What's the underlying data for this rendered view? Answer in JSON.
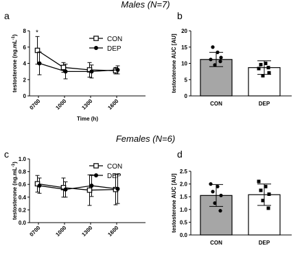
{
  "headings": {
    "males": "Males (N=7)",
    "females": "Females (N=6)"
  },
  "panel_letters": {
    "a": "a",
    "b": "b",
    "c": "c",
    "d": "d"
  },
  "chart_data": [
    {
      "id": "a",
      "type": "line",
      "x": [
        "0700",
        "1000",
        "1300",
        "1600"
      ],
      "xlabel": "Time (h)",
      "ylabel_main": "testosterone (ng.mL",
      "ylabel_sup": "-1",
      "ylabel_end": ")",
      "ylim": [
        0,
        8
      ],
      "yticks": [
        "0",
        "2",
        "4",
        "6",
        "8"
      ],
      "annotation": "*",
      "grid": false,
      "legend_position": "top-right",
      "series": [
        {
          "name": "CON",
          "marker": "open-square",
          "values": [
            5.6,
            3.5,
            3.2,
            3.1
          ],
          "errors": [
            1.7,
            0.6,
            0.9,
            0.4
          ]
        },
        {
          "name": "DEP",
          "marker": "filled-circle",
          "values": [
            4.0,
            3.0,
            3.0,
            3.2
          ],
          "errors": [
            1.4,
            0.9,
            0.8,
            0.5
          ]
        }
      ]
    },
    {
      "id": "b",
      "type": "bar",
      "categories": [
        "CON",
        "DEP"
      ],
      "values": [
        11.2,
        8.7
      ],
      "errors": [
        2.2,
        2.1
      ],
      "bar_fills": [
        "#a6a6a6",
        "#ffffff"
      ],
      "points": [
        [
          11.2,
          13.4,
          15.0,
          11.8,
          9.5,
          10.6
        ],
        [
          8.4,
          10.0,
          9.6,
          7.1,
          6.2,
          8.7
        ]
      ],
      "ylabel": "testosterone AUC [AU]",
      "ylim": [
        0,
        20
      ],
      "yticks": [
        "0",
        "5",
        "10",
        "15",
        "20"
      ]
    },
    {
      "id": "c",
      "type": "line",
      "x": [
        "0700",
        "1000",
        "1300",
        "1600"
      ],
      "xlabel": "",
      "ylabel_main": "testosterone (ng.mL",
      "ylabel_sup": "-1",
      "ylabel_end": ")",
      "ylim": [
        0.0,
        1.0
      ],
      "yticks": [
        "0.0",
        "0.2",
        "0.4",
        "0.6",
        "0.8",
        "1.0"
      ],
      "grid": false,
      "legend_position": "top-right",
      "series": [
        {
          "name": "CON",
          "marker": "open-square",
          "values": [
            0.61,
            0.55,
            0.51,
            0.52
          ],
          "errors": [
            0.13,
            0.15,
            0.24,
            0.24
          ]
        },
        {
          "name": "DEP",
          "marker": "filled-circle",
          "values": [
            0.58,
            0.52,
            0.58,
            0.53
          ],
          "errors": [
            0.12,
            0.12,
            0.17,
            0.23
          ]
        }
      ]
    },
    {
      "id": "d",
      "type": "bar",
      "categories": [
        "CON",
        "DEP"
      ],
      "values": [
        1.55,
        1.58
      ],
      "errors": [
        0.43,
        0.42
      ],
      "bar_fills": [
        "#a6a6a6",
        "#ffffff"
      ],
      "points": [
        [
          2.0,
          1.9,
          1.7,
          1.55,
          1.25,
          0.95
        ],
        [
          2.1,
          1.9,
          1.75,
          1.6,
          1.35,
          1.05
        ]
      ],
      "ylabel": "testosterone AUC [AU]",
      "ylim": [
        0.0,
        2.5
      ],
      "yticks": [
        "0.0",
        "0.5",
        "1.0",
        "1.5",
        "2.0",
        "2.5"
      ]
    }
  ]
}
